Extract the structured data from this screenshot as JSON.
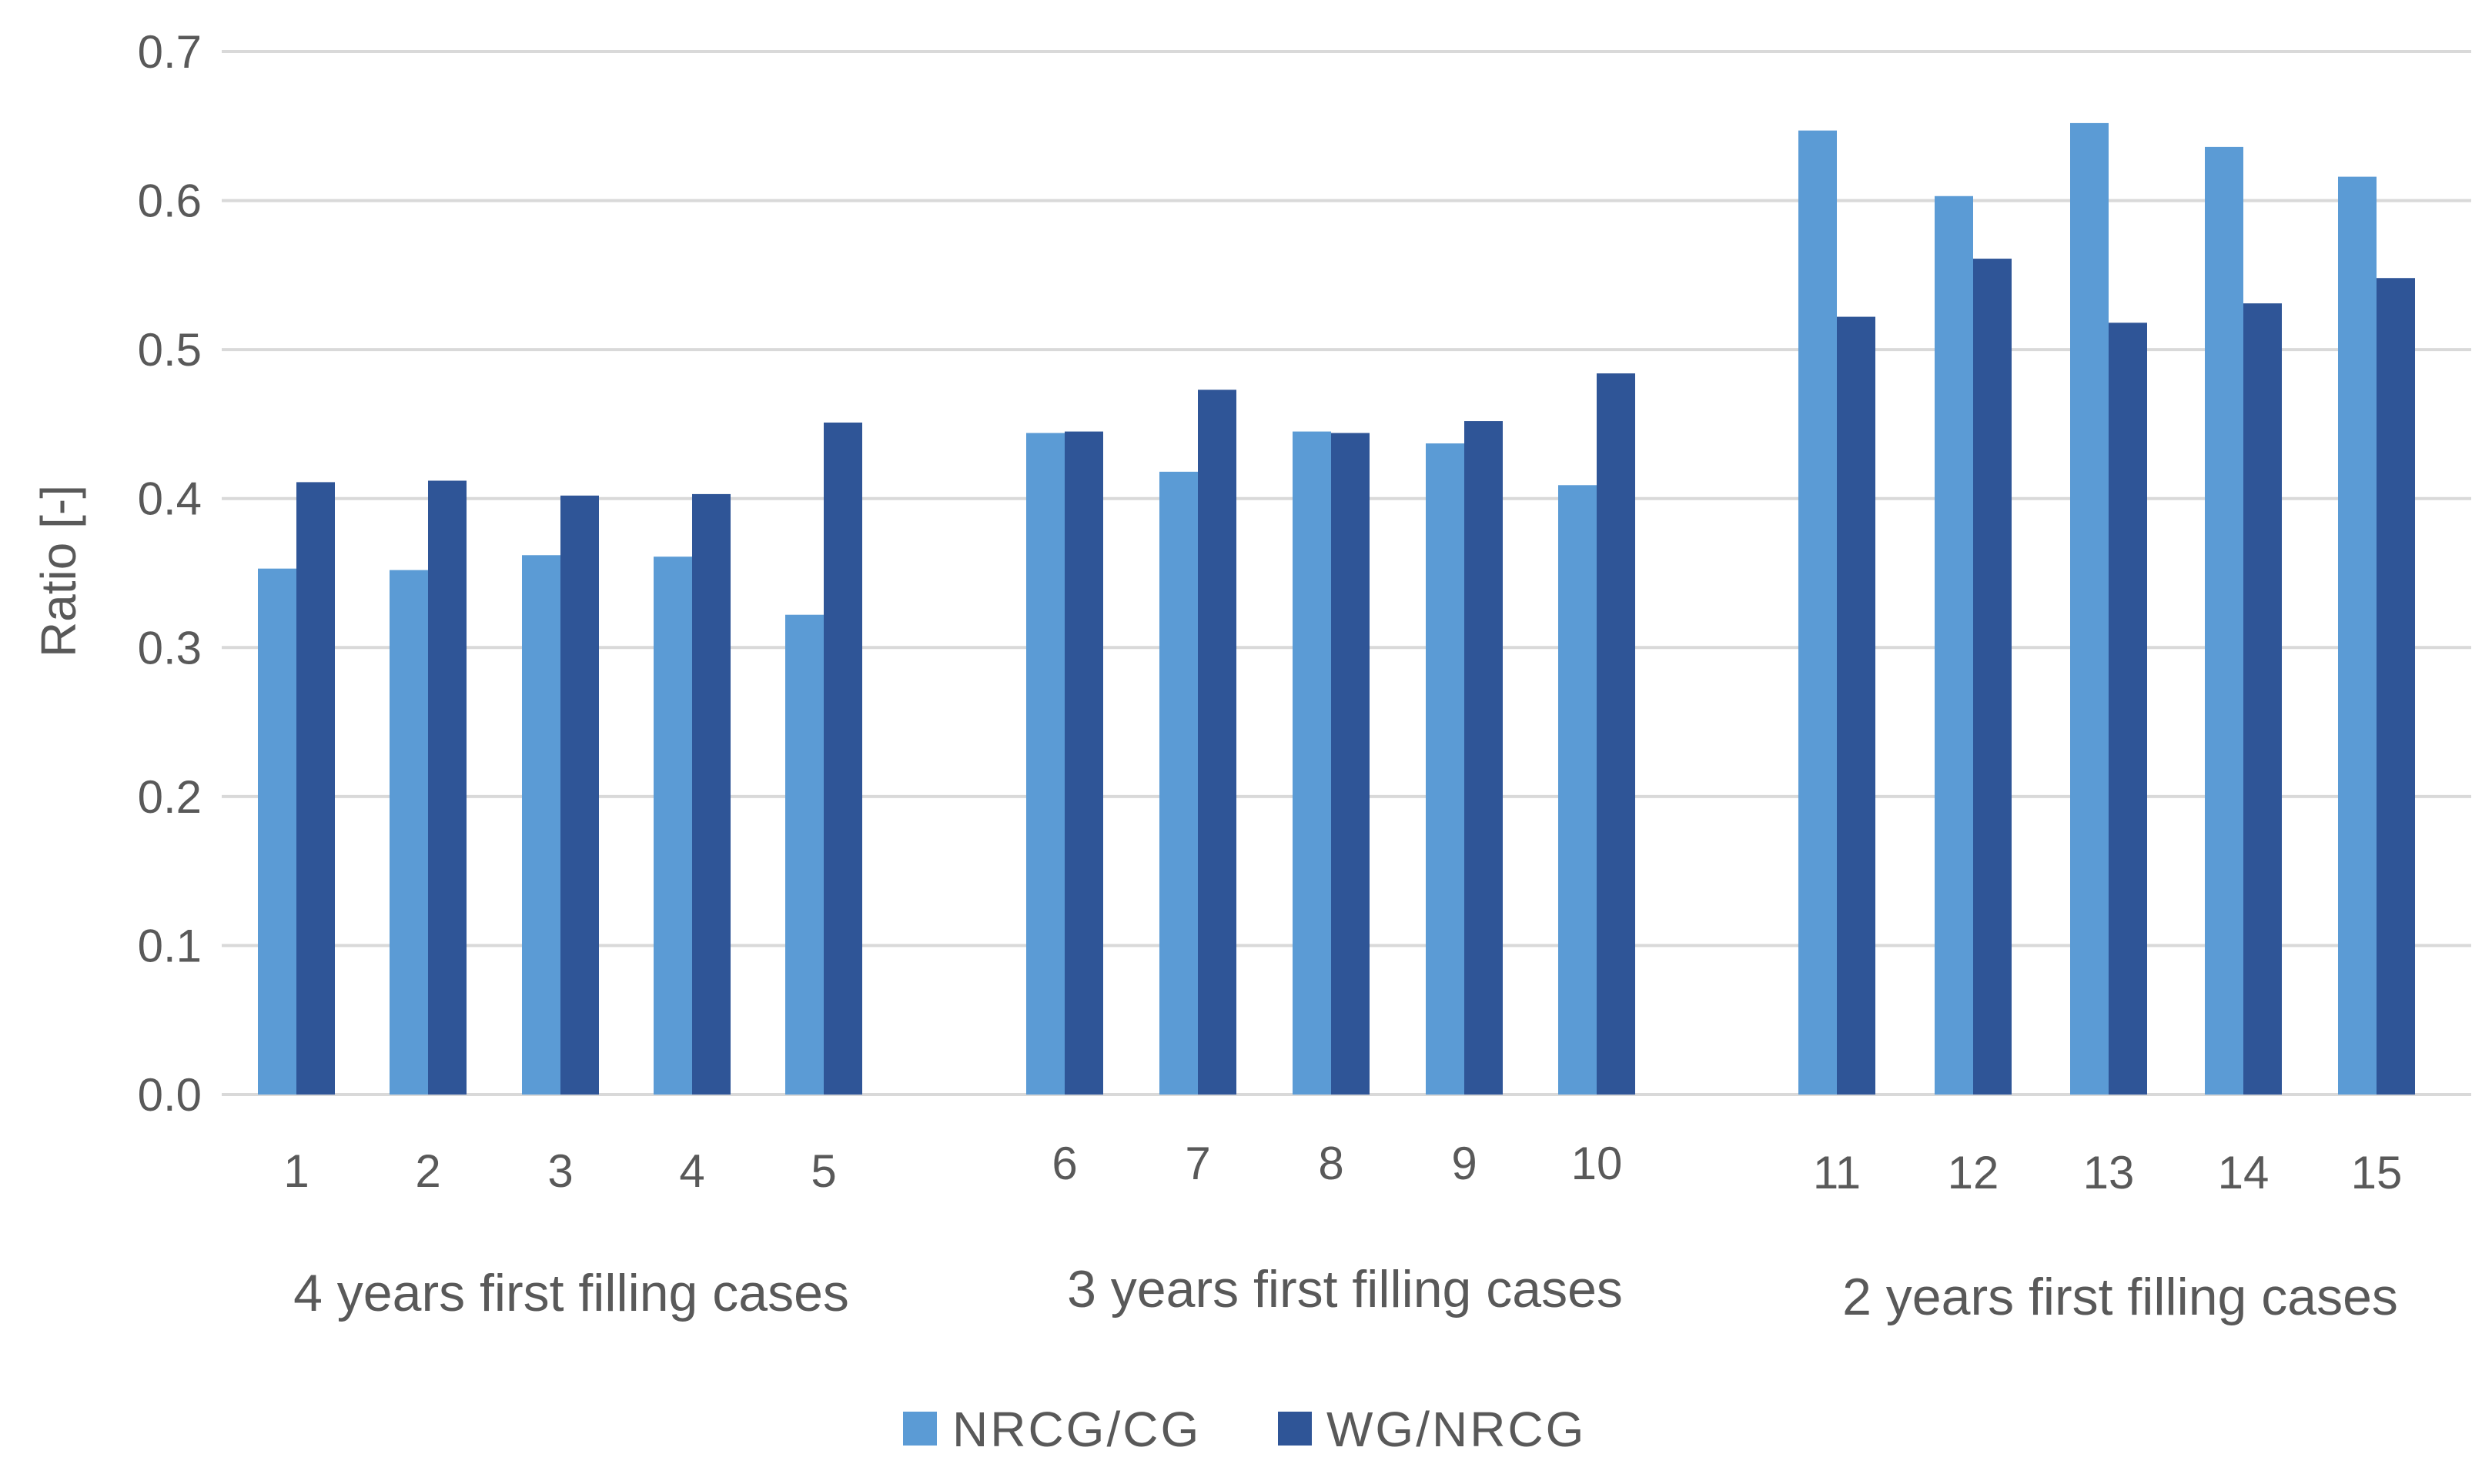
{
  "chart_data": {
    "type": "bar",
    "title": "",
    "xlabel": "",
    "ylabel": "Ratio [-]",
    "ylim": [
      0,
      0.7
    ],
    "yticks": [
      "0.0",
      "0.1",
      "0.2",
      "0.3",
      "0.4",
      "0.5",
      "0.6",
      "0.7"
    ],
    "grid": true,
    "legend_position": "bottom",
    "categories": [
      "1",
      "2",
      "3",
      "4",
      "5",
      "6",
      "7",
      "8",
      "9",
      "10",
      "11",
      "12",
      "13",
      "14",
      "15"
    ],
    "groups": [
      {
        "label": "4 years first filling cases",
        "categories": [
          "1",
          "2",
          "3",
          "4",
          "5"
        ]
      },
      {
        "label": "3 years first filling cases",
        "categories": [
          "6",
          "7",
          "8",
          "9",
          "10"
        ]
      },
      {
        "label": "2 years first filling cases",
        "categories": [
          "11",
          "12",
          "13",
          "14",
          "15"
        ]
      }
    ],
    "series": [
      {
        "name": "NRCG/CG",
        "color": "#5b9bd5",
        "values": [
          0.353,
          0.352,
          0.362,
          0.361,
          0.322,
          0.444,
          0.418,
          0.445,
          0.437,
          0.409,
          0.647,
          0.603,
          0.652,
          0.636,
          0.616
        ]
      },
      {
        "name": "WG/NRCG",
        "color": "#2f5597",
        "values": [
          0.411,
          0.412,
          0.402,
          0.403,
          0.451,
          0.445,
          0.473,
          0.444,
          0.452,
          0.484,
          0.522,
          0.561,
          0.518,
          0.531,
          0.548
        ]
      }
    ]
  }
}
